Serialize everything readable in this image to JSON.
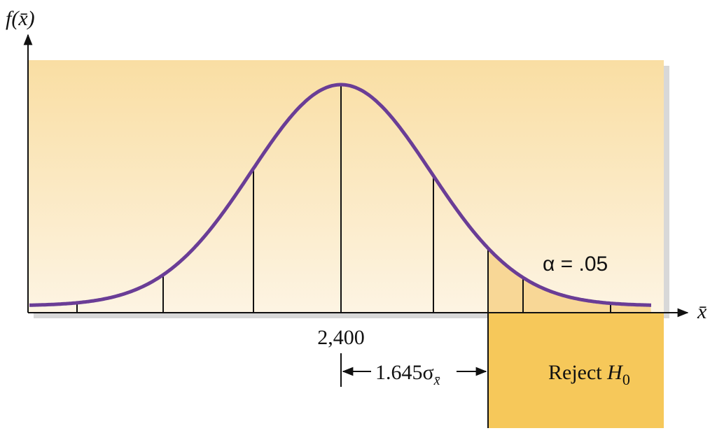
{
  "y_axis_label": "f(x̄)",
  "x_axis_label": "x̄",
  "mean_label": "2,400",
  "distance_label": {
    "text": "1.645σ",
    "subscript": "x̄"
  },
  "alpha_label": "α = .05",
  "reject_label": {
    "text": "Reject ",
    "italic": "H",
    "subscript": "0"
  }
}
